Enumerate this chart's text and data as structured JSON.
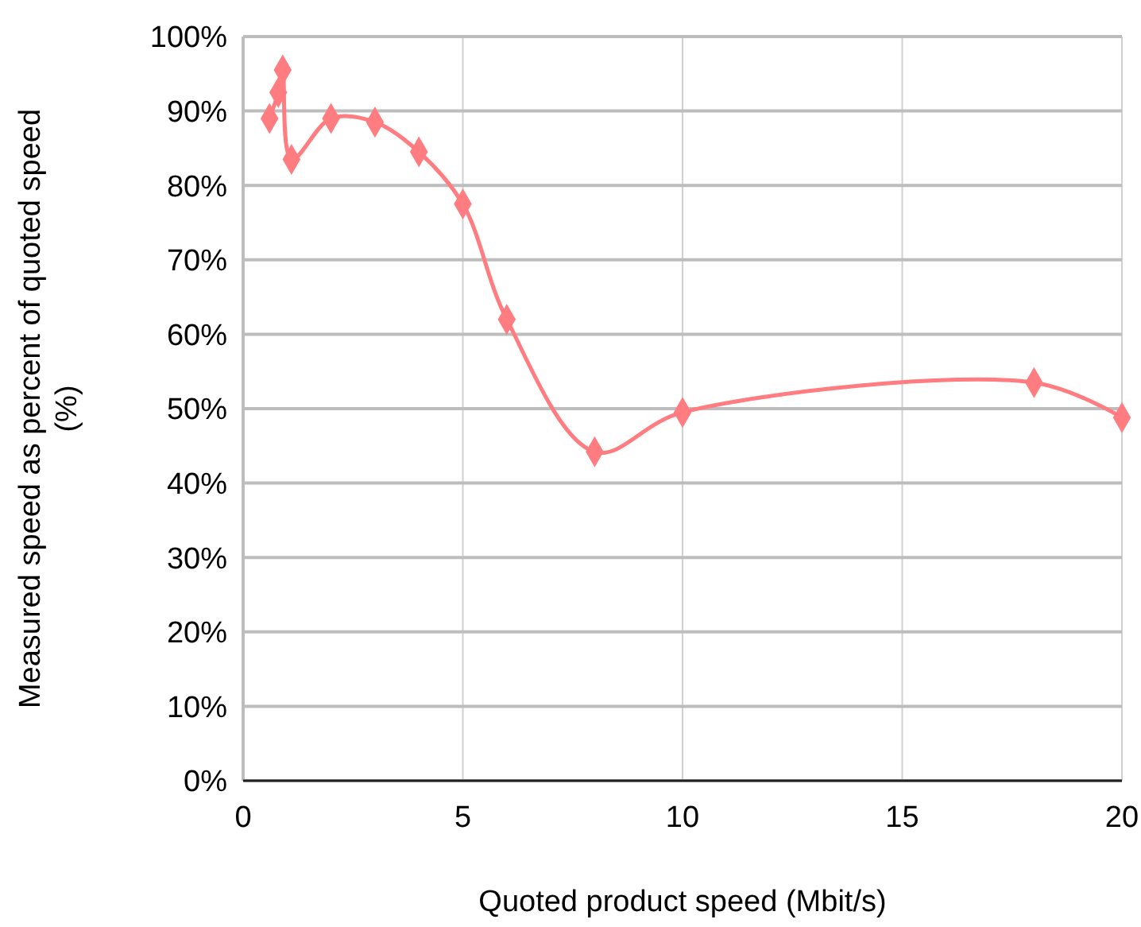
{
  "chart_data": {
    "type": "line",
    "xlabel": "Quoted product speed (Mbit/s)",
    "ylabel": "Measured speed as percent of quoted speed (%)",
    "x": [
      0.6,
      0.8,
      0.9,
      1.1,
      2,
      3,
      4,
      5,
      6,
      8,
      10,
      18,
      20
    ],
    "series": [
      {
        "color": "#ff7c80",
        "values": [
          0.89,
          0.925,
          0.955,
          0.835,
          0.89,
          0.885,
          0.845,
          0.775,
          0.62,
          0.442,
          0.495,
          0.535,
          0.488
        ]
      }
    ],
    "xlim": [
      0,
      20
    ],
    "xticks": [
      0,
      5,
      10,
      15,
      20
    ],
    "ylim": [
      0,
      1
    ],
    "yticks": [
      {
        "value": 0,
        "label": "0%"
      },
      {
        "value": 0.1,
        "label": "10%"
      },
      {
        "value": 0.2,
        "label": "20%"
      },
      {
        "value": 0.3,
        "label": "30%"
      },
      {
        "value": 0.4,
        "label": "40%"
      },
      {
        "value": 0.5,
        "label": "50%"
      },
      {
        "value": 0.6,
        "label": "60%"
      },
      {
        "value": 0.7,
        "label": "70%"
      },
      {
        "value": 0.8,
        "label": "80%"
      },
      {
        "value": 0.9,
        "label": "90%"
      },
      {
        "value": 1,
        "label": "100%"
      }
    ],
    "grid": true,
    "marker": "diamond",
    "line_style": "solid"
  }
}
